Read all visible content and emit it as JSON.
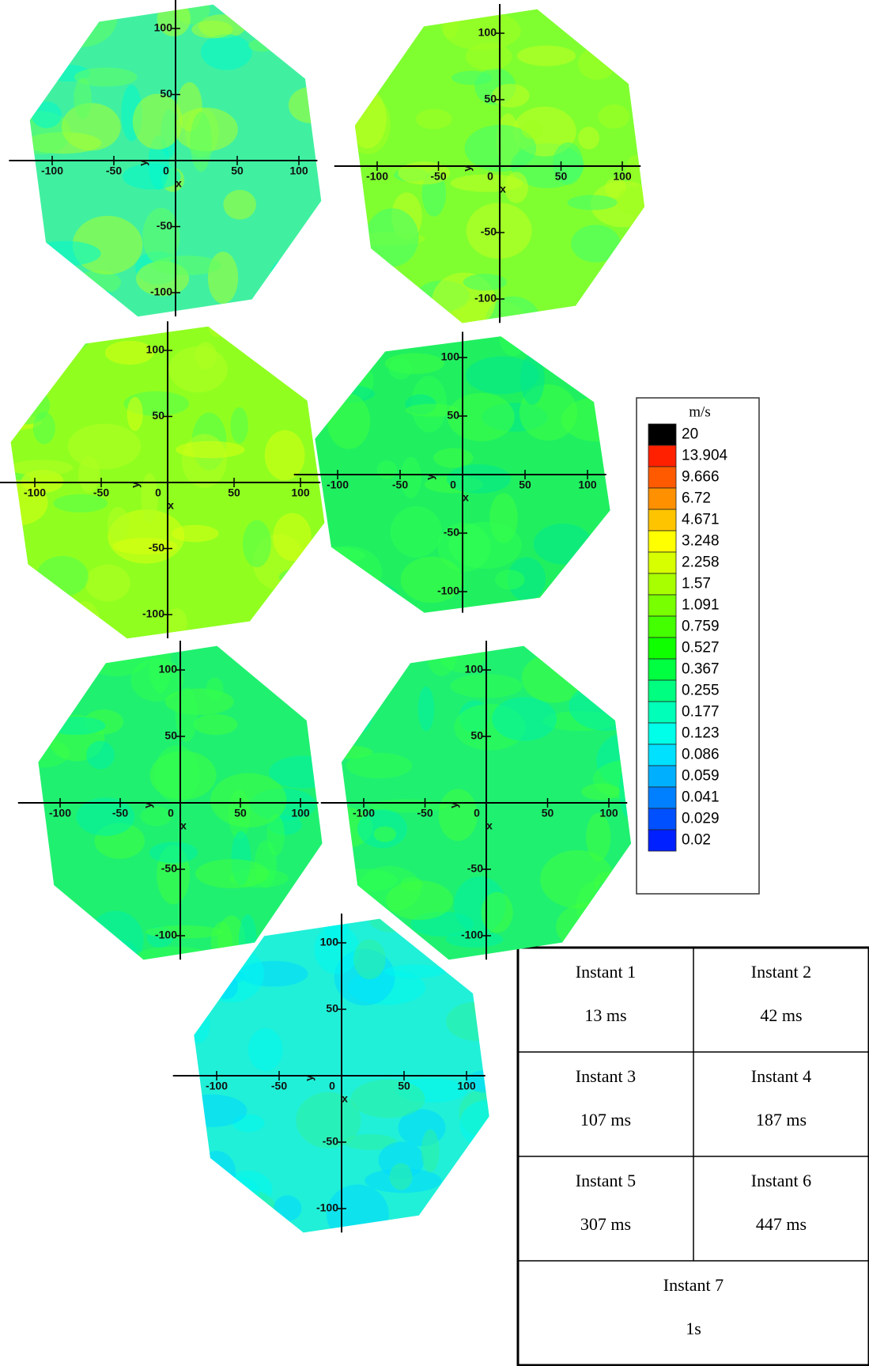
{
  "panels": [
    {
      "x_ticks": [
        -100,
        -50,
        0,
        50,
        100
      ],
      "y_ticks": [
        100,
        50,
        -50,
        -100
      ],
      "axis_labels": [
        "y",
        "x"
      ]
    },
    {
      "x_ticks": [
        -100,
        -50,
        0,
        50,
        100
      ],
      "y_ticks": [
        100,
        50,
        -50,
        -100
      ],
      "axis_labels": [
        "y",
        "x"
      ]
    },
    {
      "x_ticks": [
        -100,
        -50,
        0,
        50,
        100
      ],
      "y_ticks": [
        100,
        50,
        -50,
        -100
      ],
      "axis_labels": [
        "y",
        "x"
      ]
    },
    {
      "x_ticks": [
        -100,
        -50,
        0,
        50,
        100
      ],
      "y_ticks": [
        100,
        50,
        -50,
        -100
      ],
      "axis_labels": [
        "y",
        "x"
      ]
    },
    {
      "x_ticks": [
        -100,
        -50,
        0,
        50,
        100
      ],
      "y_ticks": [
        100,
        50,
        -50,
        -100
      ],
      "axis_labels": [
        "y",
        "x"
      ]
    },
    {
      "x_ticks": [
        -100,
        -50,
        0,
        50,
        100
      ],
      "y_ticks": [
        100,
        50,
        -50,
        -100
      ],
      "axis_labels": [
        "y",
        "x"
      ]
    },
    {
      "x_ticks": [
        -100,
        -50,
        0,
        50,
        100
      ],
      "y_ticks": [
        100,
        50,
        -50,
        -100
      ],
      "axis_labels": [
        "y",
        "x"
      ]
    }
  ],
  "legend": {
    "title": "m/s",
    "levels": [
      20,
      13.904,
      9.666,
      6.72,
      4.671,
      3.248,
      2.258,
      1.57,
      1.091,
      0.759,
      0.527,
      0.367,
      0.255,
      0.177,
      0.123,
      0.086,
      0.059,
      0.041,
      0.029,
      0.02
    ],
    "colors": [
      "#000000",
      "#ff2000",
      "#ff5a00",
      "#ff9000",
      "#ffc400",
      "#ffff00",
      "#d8ff00",
      "#a8ff00",
      "#78ff00",
      "#44ff00",
      "#10ff00",
      "#00ff40",
      "#00ff80",
      "#00ffb8",
      "#00ffe8",
      "#00e0ff",
      "#00b0ff",
      "#0080ff",
      "#0050ff",
      "#0020ff"
    ]
  },
  "table": {
    "rows": [
      [
        [
          "Instant 1",
          "13 ms"
        ],
        [
          "Instant 2",
          "42 ms"
        ]
      ],
      [
        [
          "Instant 3",
          "107 ms"
        ],
        [
          "Instant 4",
          "187 ms"
        ]
      ],
      [
        [
          "Instant 5",
          "307 ms"
        ],
        [
          "Instant 6",
          "447 ms"
        ]
      ],
      [
        [
          "Instant 7",
          "1s"
        ]
      ]
    ]
  }
}
